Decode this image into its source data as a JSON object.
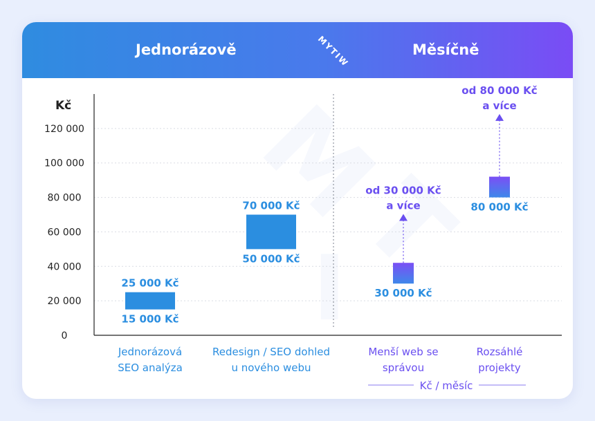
{
  "header": {
    "left_title": "Jednorázově",
    "right_title": "Měsíčně",
    "logo_text": "MYTIW"
  },
  "colors": {
    "one_time": "#2b8ee0",
    "monthly_top": "#7b4ff5",
    "monthly_bottom": "#3e88ea",
    "monthly_label": "#6a4ff0",
    "axis": "#222222"
  },
  "chart_data": {
    "type": "floating-bar",
    "ylabel": "Kč",
    "ylim": [
      0,
      140000
    ],
    "yticks": [
      {
        "value": 0,
        "label": "0"
      },
      {
        "value": 20000,
        "label": "20 000"
      },
      {
        "value": 40000,
        "label": "40 000"
      },
      {
        "value": 60000,
        "label": "60 000"
      },
      {
        "value": 80000,
        "label": "80 000"
      },
      {
        "value": 100000,
        "label": "100 000"
      },
      {
        "value": 120000,
        "label": "120 000"
      }
    ],
    "grid": true,
    "bars": [
      {
        "group": "one_time",
        "category": [
          "Jednorázová",
          "SEO analýza"
        ],
        "low": 15000,
        "high": 25000,
        "low_label": "15 000 Kč",
        "high_label": "25 000 Kč"
      },
      {
        "group": "one_time",
        "category": [
          "Redesign / SEO dohled",
          "u nového webu"
        ],
        "low": 50000,
        "high": 70000,
        "low_label": "50 000 Kč",
        "high_label": "70 000 Kč"
      },
      {
        "group": "monthly",
        "category": [
          "Menší web se",
          "správou"
        ],
        "low": 30000,
        "high": 30000,
        "low_label": "30 000 Kč",
        "arrow_to": 70000,
        "upper_label": [
          "od 30 000 Kč",
          "a více"
        ]
      },
      {
        "group": "monthly",
        "category": [
          "Rozsáhlé",
          "projekty"
        ],
        "low": 80000,
        "high": 80000,
        "low_label": "80 000 Kč",
        "arrow_to": 128000,
        "upper_label": [
          "od 80 000 Kč",
          "a více"
        ]
      }
    ],
    "monthly_axis_label": "Kč / měsíc"
  }
}
